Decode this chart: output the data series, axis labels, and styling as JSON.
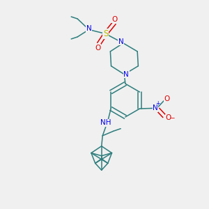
{
  "bg_color": "#f0f0f0",
  "teal": "#2d7d7d",
  "blue": "#0000ee",
  "red": "#dd0000",
  "yellow_s": "#bbbb00",
  "black": "#000000",
  "figsize": [
    3.0,
    3.0
  ],
  "dpi": 100,
  "xlim": [
    0,
    10
  ],
  "ylim": [
    0,
    10
  ],
  "bond_lw": 1.1,
  "font_size": 7.5
}
